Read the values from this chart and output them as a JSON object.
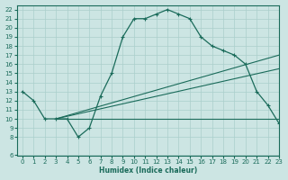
{
  "xlabel": "Humidex (Indice chaleur)",
  "bg_color": "#cce5e3",
  "grid_color": "#aacfcc",
  "line_color": "#1a6b5a",
  "xlim": [
    -0.5,
    23
  ],
  "ylim": [
    6,
    22.5
  ],
  "xticks": [
    0,
    1,
    2,
    3,
    4,
    5,
    6,
    7,
    8,
    9,
    10,
    11,
    12,
    13,
    14,
    15,
    16,
    17,
    18,
    19,
    20,
    21,
    22,
    23
  ],
  "yticks": [
    6,
    8,
    9,
    10,
    11,
    12,
    13,
    14,
    15,
    16,
    17,
    18,
    19,
    20,
    21,
    22
  ],
  "curve1_x": [
    0,
    1,
    2,
    3,
    4,
    5,
    6,
    7,
    8,
    9,
    10,
    11,
    12,
    13,
    14,
    15,
    16,
    17,
    18,
    19,
    20,
    21,
    22,
    23
  ],
  "curve1_y": [
    13,
    12,
    10,
    10,
    10,
    8,
    9,
    12.5,
    15,
    19,
    21,
    21,
    21.5,
    22,
    21.5,
    21,
    19,
    18,
    17.5,
    17,
    16,
    13,
    11.5,
    9.5
  ],
  "line1_x": [
    3,
    23
  ],
  "line1_y": [
    10,
    10
  ],
  "line2_x": [
    3,
    23
  ],
  "line2_y": [
    10,
    17
  ],
  "line3_x": [
    3,
    23
  ],
  "line3_y": [
    10,
    15.5
  ]
}
